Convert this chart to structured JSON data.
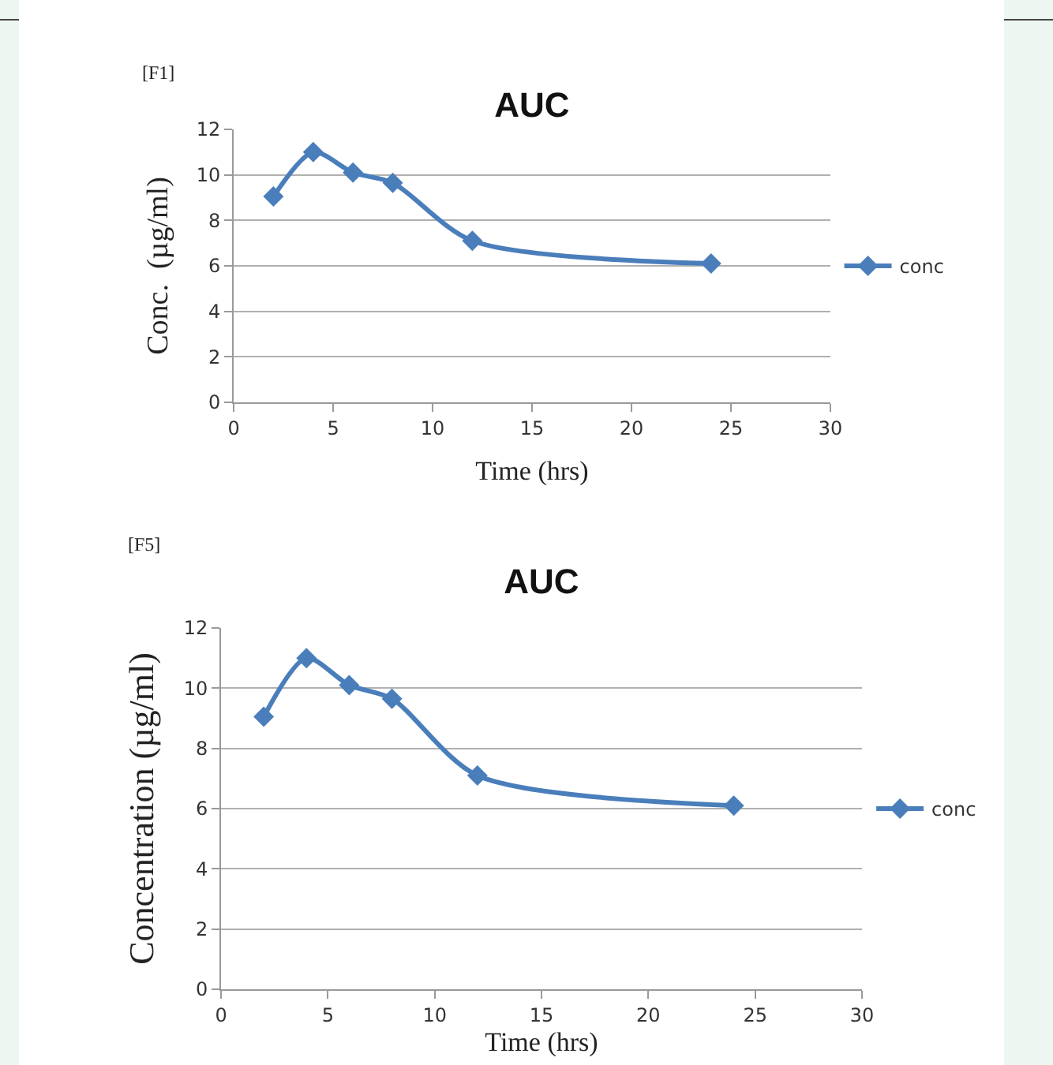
{
  "chart_data": [
    {
      "type": "line",
      "title": "AUC",
      "xlabel": "Time (hrs)",
      "ylabel": "Conc.  (µg/ml)",
      "annotations": [
        "[F1]"
      ],
      "x": [
        2,
        4,
        6,
        8,
        12,
        24
      ],
      "series": [
        {
          "name": "conc",
          "color": "#4a7ebb",
          "values": [
            9.05,
            11,
            10.1,
            9.65,
            7.1,
            6.1
          ]
        }
      ],
      "xlim": [
        0,
        30
      ],
      "xticks": [
        0,
        5,
        10,
        15,
        20,
        25,
        30
      ],
      "ylim": [
        0,
        12
      ],
      "yticks": [
        0,
        2,
        4,
        6,
        8,
        10,
        12
      ],
      "grid": "y",
      "legend": "right",
      "marker": "diamond",
      "line_style": "solid"
    },
    {
      "type": "line",
      "title": "AUC",
      "xlabel": "Time (hrs)",
      "ylabel": "Concentration (µg/ml)",
      "annotations": [
        "[F5]"
      ],
      "x": [
        2,
        4,
        6,
        8,
        12,
        24
      ],
      "series": [
        {
          "name": "conc",
          "color": "#4a7ebb",
          "values": [
            9.05,
            11,
            10.1,
            9.65,
            7.1,
            6.1
          ]
        }
      ],
      "xlim": [
        0,
        30
      ],
      "xticks": [
        0,
        5,
        10,
        15,
        20,
        25,
        30
      ],
      "ylim": [
        0,
        12
      ],
      "yticks": [
        0,
        2,
        4,
        6,
        8,
        10,
        12
      ],
      "grid": "y",
      "legend": "right",
      "marker": "diamond",
      "line_style": "solid"
    }
  ]
}
